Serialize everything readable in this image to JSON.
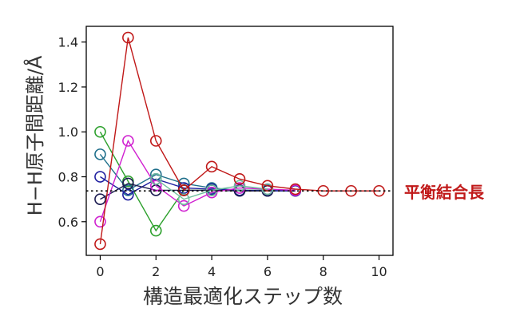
{
  "chart_data": {
    "type": "line",
    "xlabel": "構造最適化ステップ数",
    "ylabel": "H−H原子間距離/Å",
    "xlim": [
      -0.5,
      10.5
    ],
    "ylim": [
      0.45,
      1.47
    ],
    "xticks": [
      0,
      2,
      4,
      6,
      8,
      10
    ],
    "yticks": [
      0.6,
      0.8,
      1.0,
      1.2,
      1.4
    ],
    "ytick_labels": [
      "0.6",
      "0.8",
      "1.0",
      "1.2",
      "1.4"
    ],
    "equilibrium": {
      "value": 0.737,
      "label": "平衡結合長",
      "label_color": "#c01818"
    },
    "grid": false,
    "series": [
      {
        "color": "#2ca02c",
        "x": [
          0,
          1,
          2,
          3,
          4,
          5,
          6
        ],
        "y": [
          1.0,
          0.78,
          0.56,
          0.74,
          0.74,
          0.74,
          0.74
        ]
      },
      {
        "color": "#1f6f8b",
        "x": [
          0,
          1,
          2,
          3,
          4,
          5,
          6,
          7
        ],
        "y": [
          0.9,
          0.74,
          0.81,
          0.77,
          0.75,
          0.74,
          0.74,
          0.74
        ]
      },
      {
        "color": "#1f1fa0",
        "x": [
          0,
          1,
          2,
          3,
          4,
          5,
          6,
          7
        ],
        "y": [
          0.8,
          0.72,
          0.79,
          0.75,
          0.745,
          0.74,
          0.737,
          0.737
        ]
      },
      {
        "color": "#1a1a50",
        "x": [
          0,
          1,
          2,
          3,
          4,
          5,
          6
        ],
        "y": [
          0.7,
          0.77,
          0.74,
          0.74,
          0.74,
          0.737,
          0.737
        ]
      },
      {
        "color": "#d020d0",
        "x": [
          0,
          1,
          2,
          3,
          4,
          5,
          6,
          7
        ],
        "y": [
          0.6,
          0.96,
          0.76,
          0.67,
          0.73,
          0.75,
          0.745,
          0.74
        ]
      },
      {
        "color": "#6fbf9f",
        "x": [
          2,
          3,
          4,
          5,
          6
        ],
        "y": [
          0.79,
          0.7,
          0.74,
          0.76,
          0.745
        ]
      },
      {
        "color": "#c01818",
        "x": [
          0,
          1,
          2,
          3,
          4,
          5,
          6,
          7,
          8,
          9,
          10
        ],
        "y": [
          0.5,
          1.42,
          0.96,
          0.74,
          0.845,
          0.79,
          0.76,
          0.745,
          0.737,
          0.737,
          0.737
        ]
      }
    ]
  }
}
